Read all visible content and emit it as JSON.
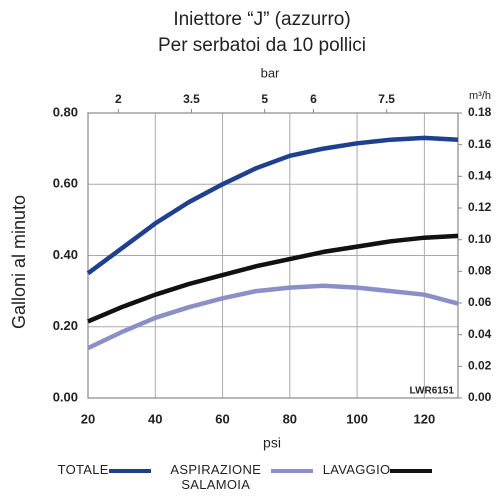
{
  "chart_data": {
    "type": "line",
    "title": "Iniettore “J” (azzurro)",
    "subtitle": "Per serbatoi da 10 pollici",
    "x_label": "psi",
    "y_label": "Galloni al minuto",
    "x2_label": "bar",
    "y2_label": "m³/h",
    "annotation": "LWR6151",
    "x": [
      20,
      30,
      40,
      50,
      60,
      70,
      80,
      90,
      100,
      110,
      120,
      130
    ],
    "series": [
      {
        "name": "TOTALE",
        "color": "#1f3f8f",
        "values": [
          0.35,
          0.42,
          0.49,
          0.55,
          0.6,
          0.645,
          0.68,
          0.7,
          0.715,
          0.725,
          0.73,
          0.725
        ]
      },
      {
        "name": "ASPIRAZIONE SALAMOIA",
        "color": "#8b8fc7",
        "values": [
          0.14,
          0.185,
          0.225,
          0.255,
          0.28,
          0.3,
          0.31,
          0.315,
          0.31,
          0.3,
          0.29,
          0.265
        ]
      },
      {
        "name": "LAVAGGIO",
        "color": "#111111",
        "values": [
          0.215,
          0.255,
          0.29,
          0.32,
          0.345,
          0.37,
          0.39,
          0.41,
          0.425,
          0.44,
          0.45,
          0.455
        ]
      }
    ],
    "xlim": [
      20,
      130
    ],
    "xticks": [
      20,
      40,
      60,
      80,
      100,
      120
    ],
    "x2lim": [
      1.379,
      8.963
    ],
    "x2ticks": [
      2,
      3.5,
      5,
      6,
      7.5
    ],
    "ylim": [
      0,
      0.8
    ],
    "yticks": [
      {
        "value": 0,
        "label": "0.00"
      },
      {
        "value": 0.2,
        "label": "0.20"
      },
      {
        "value": 0.4,
        "label": "0.40"
      },
      {
        "value": 0.6,
        "label": "0.60"
      },
      {
        "value": 0.8,
        "label": "0.80"
      }
    ],
    "y2lim": [
      0,
      0.18
    ],
    "y2ticks": [
      {
        "value": 0,
        "label": "0.00"
      },
      {
        "value": 0.02,
        "label": "0.02"
      },
      {
        "value": 0.04,
        "label": "0.04"
      },
      {
        "value": 0.06,
        "label": "0.06"
      },
      {
        "value": 0.08,
        "label": "0.08"
      },
      {
        "value": 0.1,
        "label": "0.10"
      },
      {
        "value": 0.12,
        "label": "0.12"
      },
      {
        "value": 0.14,
        "label": "0.14"
      },
      {
        "value": 0.16,
        "label": "0.16"
      },
      {
        "value": 0.18,
        "label": "0.18"
      }
    ],
    "grid": true
  }
}
